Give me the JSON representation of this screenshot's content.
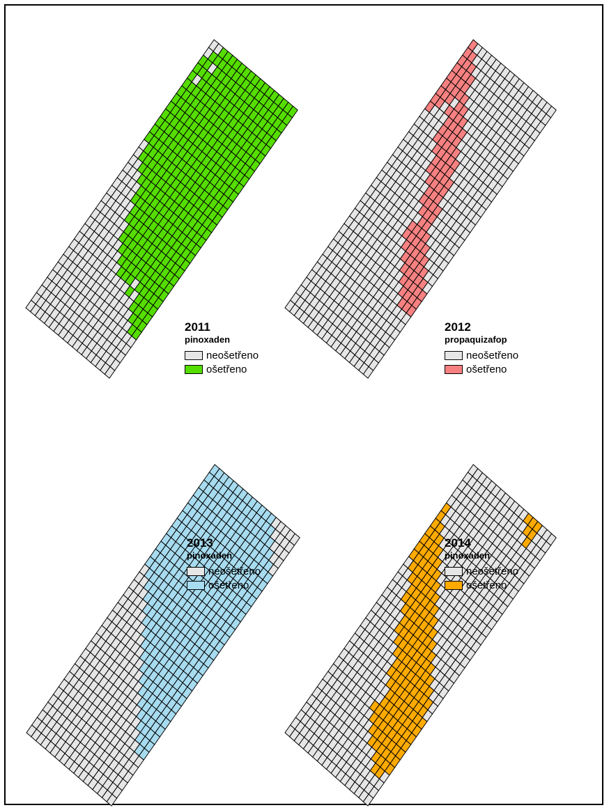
{
  "colors": {
    "untreated": "#e6e6e6",
    "grid_line": "#000000"
  },
  "panels": [
    {
      "year": "2011",
      "herbicide": "pinoxaden",
      "legend_untreated": "neošetřeno",
      "legend_treated": "ošetřeno",
      "treated_color": "#55dd00",
      "treated_rows": [
        [],
        [],
        [],
        [],
        [],
        [
          16,
          17
        ],
        [
          15,
          16,
          17
        ],
        [
          14,
          15,
          16,
          17
        ],
        [
          12,
          14,
          15,
          16,
          17
        ],
        [
          9,
          10,
          11,
          13,
          14,
          15,
          16,
          17
        ],
        [
          8,
          9,
          10,
          11,
          12,
          13,
          14,
          15,
          16,
          17
        ],
        [
          7,
          8,
          9,
          10,
          11,
          12,
          13,
          14,
          15,
          16,
          17
        ],
        [
          6,
          7,
          8,
          9,
          10,
          11,
          12,
          13,
          14,
          15,
          16,
          17
        ],
        [
          6,
          7,
          8,
          9,
          10,
          11,
          12,
          13,
          14,
          15,
          16,
          17
        ],
        [
          5,
          6,
          7,
          8,
          9,
          10,
          11,
          12,
          13,
          14,
          15,
          16,
          17
        ],
        [
          5,
          6,
          7,
          8,
          9,
          10,
          11,
          12,
          13,
          14,
          15,
          16,
          17
        ],
        [
          4,
          5,
          6,
          7,
          8,
          9,
          10,
          11,
          12,
          13,
          14,
          15,
          16,
          17
        ],
        [
          4,
          5,
          6,
          7,
          8,
          9,
          10,
          11,
          12,
          13,
          14,
          15,
          16,
          17
        ],
        [
          3,
          4,
          5,
          6,
          7,
          8,
          9,
          10,
          11,
          12,
          13,
          14,
          15,
          16,
          17
        ],
        [
          2,
          3,
          4,
          5,
          6,
          7,
          8,
          9,
          10,
          11,
          12,
          13,
          14,
          15,
          16,
          17
        ],
        [
          1,
          2,
          3,
          4,
          5,
          6,
          7,
          8,
          9,
          10,
          11,
          12,
          13,
          14,
          15,
          16,
          17
        ],
        [
          1,
          2,
          3,
          4,
          5,
          6,
          7,
          8,
          9,
          10,
          11,
          12,
          13,
          14,
          15,
          16,
          17
        ],
        [
          0,
          1,
          2,
          3,
          4,
          5,
          6,
          7,
          8,
          9,
          10,
          11,
          12,
          13,
          14,
          15,
          16,
          17
        ],
        [
          0,
          1,
          2,
          3,
          4,
          5,
          6,
          7,
          8,
          9,
          10,
          11,
          12,
          13,
          14,
          15,
          16,
          17
        ],
        [
          0,
          1,
          2,
          3,
          4,
          5,
          6,
          7,
          8,
          9,
          10,
          11,
          12,
          13,
          14,
          15,
          16,
          17
        ],
        [
          0,
          1,
          2,
          3,
          4,
          5,
          6,
          7,
          8,
          9,
          10,
          11,
          12,
          13,
          14,
          15,
          16,
          17
        ],
        [
          0,
          1,
          2,
          3,
          4,
          5,
          6,
          7,
          8,
          9,
          10,
          11,
          12,
          13,
          14,
          15,
          16,
          17
        ],
        [
          0,
          1,
          2,
          3,
          4,
          5,
          6,
          7,
          8,
          9,
          10,
          11,
          12,
          13,
          14,
          15,
          16,
          17
        ],
        [
          0,
          1,
          2,
          3,
          4,
          5,
          6,
          7,
          8,
          9,
          10,
          11,
          12,
          13,
          14,
          15,
          16,
          17
        ],
        [
          0,
          1,
          2,
          3,
          4,
          5,
          6,
          7,
          8,
          9,
          10,
          11,
          12,
          13,
          14,
          15,
          16,
          17
        ],
        [
          0,
          2,
          3,
          4,
          5,
          6,
          7,
          8,
          9,
          10,
          11,
          12,
          13,
          14,
          15,
          16,
          17
        ],
        [
          0,
          1,
          2,
          3,
          4,
          5,
          6,
          7,
          8,
          9,
          10,
          11,
          12,
          13,
          14,
          15,
          16,
          17
        ],
        [
          0,
          1,
          3,
          4,
          5,
          6,
          7,
          8,
          9,
          10,
          11,
          12,
          13,
          14,
          15,
          16,
          17
        ],
        [
          1,
          2,
          3,
          4,
          5,
          6,
          7,
          8,
          9,
          10,
          11,
          12,
          13,
          14,
          15,
          16,
          17
        ],
        [
          2,
          3,
          4,
          5,
          6,
          7,
          8,
          9,
          10,
          11,
          12,
          13,
          14,
          15,
          16,
          17
        ]
      ]
    },
    {
      "year": "2012",
      "herbicide": "propaquizafop",
      "legend_untreated": "neošetřeno",
      "legend_treated": "ošetřeno",
      "treated_color": "#f78181",
      "treated_rows": [
        [],
        [],
        [],
        [],
        [],
        [],
        [],
        [],
        [
          15,
          16,
          17
        ],
        [
          14,
          15,
          16,
          17
        ],
        [
          13,
          14,
          15,
          16,
          17
        ],
        [
          12,
          13,
          14,
          15,
          16
        ],
        [
          11,
          12,
          13,
          14,
          15
        ],
        [
          10,
          11,
          12,
          13,
          14
        ],
        [
          9,
          10,
          11,
          12,
          13
        ],
        [
          9,
          10,
          11,
          12
        ],
        [
          10,
          11
        ],
        [
          9,
          10,
          11
        ],
        [
          8,
          9,
          10,
          11
        ],
        [
          8,
          9,
          10
        ],
        [
          7,
          8,
          9,
          10
        ],
        [
          6,
          7,
          8,
          9,
          10
        ],
        [
          6,
          7,
          8,
          9
        ],
        [
          5,
          6,
          7,
          8,
          9
        ],
        [
          4,
          5,
          6,
          7,
          8
        ],
        [
          4,
          5,
          6,
          7
        ],
        [
          0,
          4,
          5,
          6,
          7
        ],
        [
          0,
          1,
          3,
          4,
          5,
          6
        ],
        [
          0,
          1,
          2,
          4,
          5
        ],
        [
          0,
          1,
          2,
          3,
          4
        ],
        [
          0,
          1,
          2,
          3
        ],
        [
          0,
          1,
          2,
          3
        ],
        [
          0,
          1,
          2
        ],
        [
          0,
          1
        ],
        [
          0
        ]
      ]
    },
    {
      "year": "2013",
      "herbicide": "pinoxaden",
      "legend_untreated": "neošetřeno",
      "legend_treated": "ošetřeno",
      "treated_color": "#a7dbef",
      "treated_rows": [
        [],
        [],
        [],
        [],
        [],
        [],
        [
          16,
          17
        ],
        [
          15,
          16,
          17
        ],
        [
          14,
          15,
          16,
          17
        ],
        [
          13,
          14,
          15,
          16,
          17
        ],
        [
          12,
          13,
          14,
          15,
          16,
          17
        ],
        [
          11,
          12,
          13,
          14,
          15,
          16,
          17
        ],
        [
          10,
          11,
          12,
          13,
          14,
          15,
          16,
          17
        ],
        [
          9,
          10,
          11,
          12,
          13,
          14,
          15,
          16,
          17
        ],
        [
          8,
          9,
          10,
          11,
          12,
          13,
          14,
          15,
          16,
          17
        ],
        [
          7,
          8,
          9,
          10,
          11,
          12,
          13,
          14,
          15,
          16,
          17
        ],
        [
          6,
          7,
          8,
          9,
          10,
          11,
          12,
          13,
          14,
          15,
          16,
          17
        ],
        [
          5,
          6,
          7,
          8,
          9,
          10,
          11,
          12,
          13,
          14,
          15,
          16,
          17
        ],
        [
          4,
          5,
          6,
          7,
          8,
          9,
          10,
          11,
          12,
          13,
          14,
          15,
          16,
          17
        ],
        [
          3,
          4,
          5,
          6,
          7,
          8,
          9,
          10,
          11,
          12,
          13,
          14,
          15,
          16,
          17
        ],
        [
          2,
          3,
          4,
          5,
          6,
          7,
          8,
          9,
          10,
          11,
          12,
          13,
          14,
          15,
          16,
          17
        ],
        [
          1,
          2,
          3,
          4,
          5,
          6,
          7,
          8,
          9,
          10,
          11,
          12,
          13,
          14,
          15,
          16,
          17
        ],
        [
          0,
          1,
          2,
          3,
          4,
          5,
          6,
          7,
          8,
          9,
          10,
          11,
          12,
          13,
          14,
          15,
          16,
          17
        ],
        [
          0,
          1,
          2,
          3,
          4,
          5,
          6,
          7,
          8,
          9,
          10,
          11,
          12,
          13,
          14,
          15,
          16,
          17
        ],
        [
          0,
          1,
          2,
          3,
          4,
          5,
          6,
          7,
          8,
          9,
          10,
          11,
          12,
          13,
          14,
          15,
          16,
          17
        ],
        [
          0,
          1,
          2,
          3,
          4,
          5,
          6,
          7,
          8,
          9,
          10,
          11,
          12,
          13,
          14,
          15,
          16,
          17
        ],
        [
          0,
          1,
          2,
          3,
          4,
          5,
          6,
          7,
          8,
          9,
          10,
          11,
          12,
          13,
          14,
          15,
          16,
          17
        ],
        [
          0,
          1,
          2,
          3,
          4,
          5,
          6,
          7,
          8,
          9,
          10,
          11,
          12,
          13,
          14,
          15,
          16,
          17
        ],
        [
          0,
          1,
          2,
          3,
          4,
          5,
          6,
          7,
          8,
          9,
          10,
          11,
          12,
          13,
          14,
          15,
          16,
          17
        ],
        [
          0,
          1,
          2,
          3,
          4,
          5,
          6,
          7,
          8,
          9,
          10,
          11,
          12,
          13,
          14,
          15,
          16,
          17
        ],
        [
          0,
          1,
          2,
          3,
          4,
          5,
          6,
          7,
          8,
          9,
          10,
          11,
          12,
          13,
          14,
          15,
          16
        ],
        [
          0,
          1,
          2,
          3,
          4,
          5,
          6,
          7,
          8,
          9,
          10,
          11,
          12,
          13,
          14,
          15
        ],
        [
          0,
          1,
          2,
          3,
          4,
          5,
          6,
          7,
          8,
          9,
          10,
          11,
          12,
          13,
          14
        ],
        [
          0,
          1,
          2,
          3,
          4,
          5,
          6,
          7,
          8,
          9,
          10,
          11,
          12,
          13
        ],
        [
          0,
          1,
          2,
          3,
          4,
          5,
          6,
          7,
          8,
          9,
          10,
          11,
          12
        ]
      ]
    },
    {
      "year": "2014",
      "herbicide": "pinoxaden",
      "legend_untreated": "neošetřeno",
      "legend_treated": "ošetřeno",
      "treated_color": "#ffaa00",
      "treated_rows": [
        [],
        [],
        [],
        [
          15,
          16
        ],
        [
          14,
          15,
          16,
          17
        ],
        [
          12,
          13,
          14,
          15,
          16,
          17
        ],
        [
          11,
          12,
          13,
          14,
          15,
          16,
          17
        ],
        [
          10,
          11,
          12,
          13,
          14,
          15,
          16,
          17
        ],
        [
          9,
          10,
          11,
          12,
          13,
          14,
          15,
          16,
          17
        ],
        [
          10,
          11,
          12,
          13,
          14,
          15,
          16,
          17
        ],
        [
          10,
          11,
          12,
          13,
          14,
          15,
          16,
          17
        ],
        [
          9,
          10,
          11,
          12,
          13,
          14,
          15,
          16
        ],
        [
          8,
          9,
          10,
          11,
          12,
          13,
          14,
          15,
          16
        ],
        [
          8,
          9,
          10,
          11,
          12,
          13,
          14,
          15
        ],
        [
          7,
          8,
          9,
          10,
          11,
          12,
          13,
          14
        ],
        [
          6,
          7,
          8,
          9,
          10,
          11,
          12,
          13
        ],
        [
          5,
          6,
          7,
          8,
          9,
          10,
          11,
          12
        ],
        [
          5,
          6,
          7,
          8,
          9,
          10,
          11
        ],
        [
          4,
          5,
          6,
          7,
          8,
          9,
          10
        ],
        [
          3,
          4,
          5,
          6,
          7,
          8,
          9
        ],
        [
          3,
          4,
          5,
          6,
          7,
          8
        ],
        [
          2,
          3,
          4,
          5,
          6,
          7
        ],
        [
          1,
          2,
          3,
          4,
          5,
          6
        ],
        [
          0,
          1,
          2,
          3,
          4,
          5
        ],
        [
          0,
          1,
          2,
          3,
          4
        ],
        [
          0,
          1,
          2,
          3
        ],
        [
          0,
          1,
          2
        ],
        [
          0,
          1
        ],
        [
          0
        ],
        [
          0
        ],
        [],
        [],
        [
          14
        ],
        [
          13,
          14
        ],
        [
          12,
          13,
          14
        ]
      ]
    }
  ]
}
